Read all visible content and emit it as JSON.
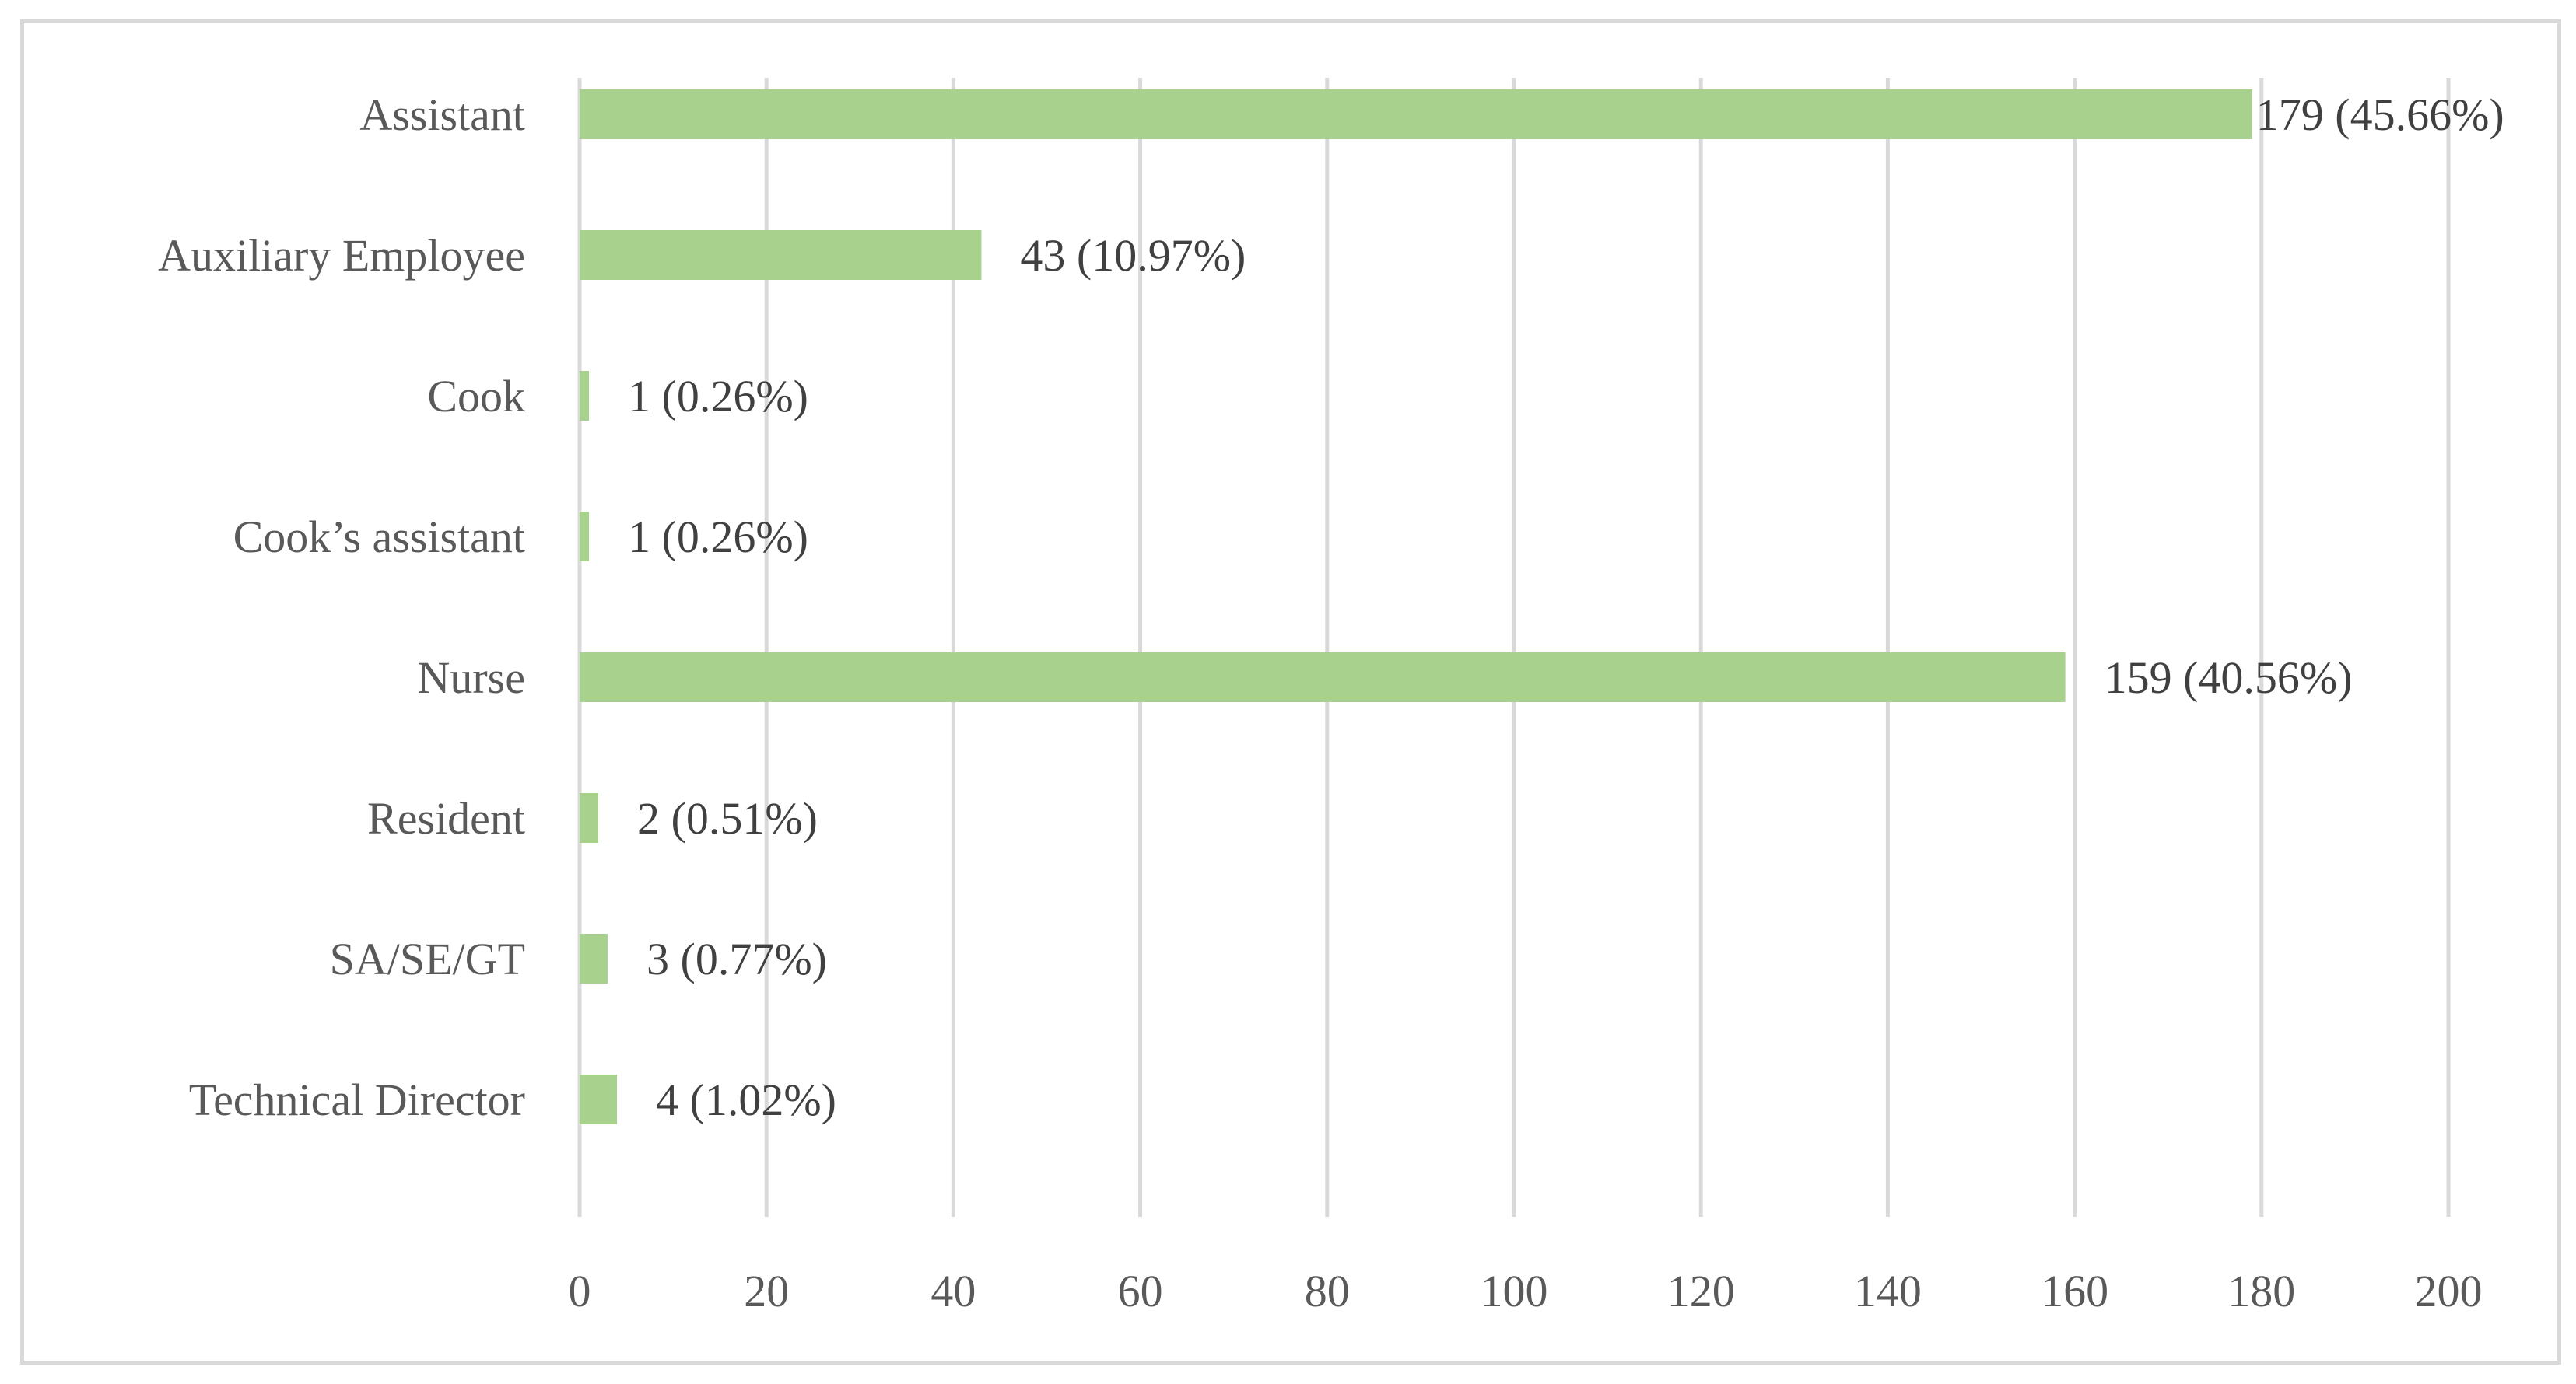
{
  "chart_data": {
    "type": "bar",
    "orientation": "horizontal",
    "categories": [
      "Assistant",
      "Auxiliary Employee",
      "Cook",
      "Cook’s assistant",
      "Nurse",
      "Resident",
      "SA/SE/GT",
      "Technical Director"
    ],
    "values": [
      179,
      43,
      1,
      1,
      159,
      2,
      3,
      4
    ],
    "data_labels": [
      "179 (45.66%)",
      "43 (10.97%)",
      "1 (0.26%)",
      "1 (0.26%)",
      "159 (40.56%)",
      "2 (0.51%)",
      "3 (0.77%)",
      "4 (1.02%)"
    ],
    "x_ticks": [
      "0",
      "20",
      "40",
      "60",
      "80",
      "100",
      "120",
      "140",
      "160",
      "180",
      "200"
    ],
    "xlim": [
      0,
      200
    ],
    "title": "",
    "xlabel": "",
    "ylabel": "",
    "grid": "vertical",
    "legend": "none",
    "bar_color": "#a9d18e",
    "grid_color": "#d9d9d9",
    "frame_color": "#d9d9d9",
    "text_color": "#595959"
  }
}
